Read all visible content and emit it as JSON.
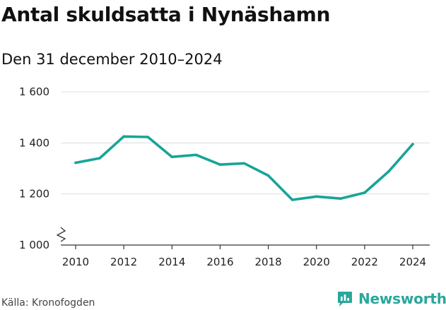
{
  "title": "Antal skuldsatta i Nynäshamn",
  "subtitle": "Den 31 december 2010–2024",
  "source": "Källa: Kronofogden",
  "brand": "Newsworthy",
  "colors": {
    "line": "#17a497",
    "grid": "#dddddd",
    "axis": "#333333",
    "brand": "#2aa79b"
  },
  "chart_data": {
    "type": "line",
    "title": "Antal skuldsatta i Nynäshamn",
    "subtitle": "Den 31 december 2010–2024",
    "xlabel": "",
    "ylabel": "",
    "x": [
      2010,
      2011,
      2012,
      2013,
      2014,
      2015,
      2016,
      2017,
      2018,
      2019,
      2020,
      2021,
      2022,
      2023,
      2024
    ],
    "series": [
      {
        "name": "Antal skuldsatta",
        "values": [
          1322,
          1340,
          1425,
          1423,
          1345,
          1353,
          1315,
          1320,
          1272,
          1177,
          1190,
          1182,
          1205,
          1288,
          1395
        ]
      }
    ],
    "ylim": [
      1000,
      1600
    ],
    "yticks": [
      1000,
      1200,
      1400,
      1600
    ],
    "ytick_labels": [
      "1 000",
      "1 200",
      "1 400",
      "1 600"
    ],
    "xticks": [
      2010,
      2012,
      2014,
      2016,
      2018,
      2020,
      2022,
      2024
    ],
    "xtick_labels": [
      "2010",
      "2012",
      "2014",
      "2016",
      "2018",
      "2020",
      "2022",
      "2024"
    ],
    "axis_break": true,
    "grid": true
  }
}
